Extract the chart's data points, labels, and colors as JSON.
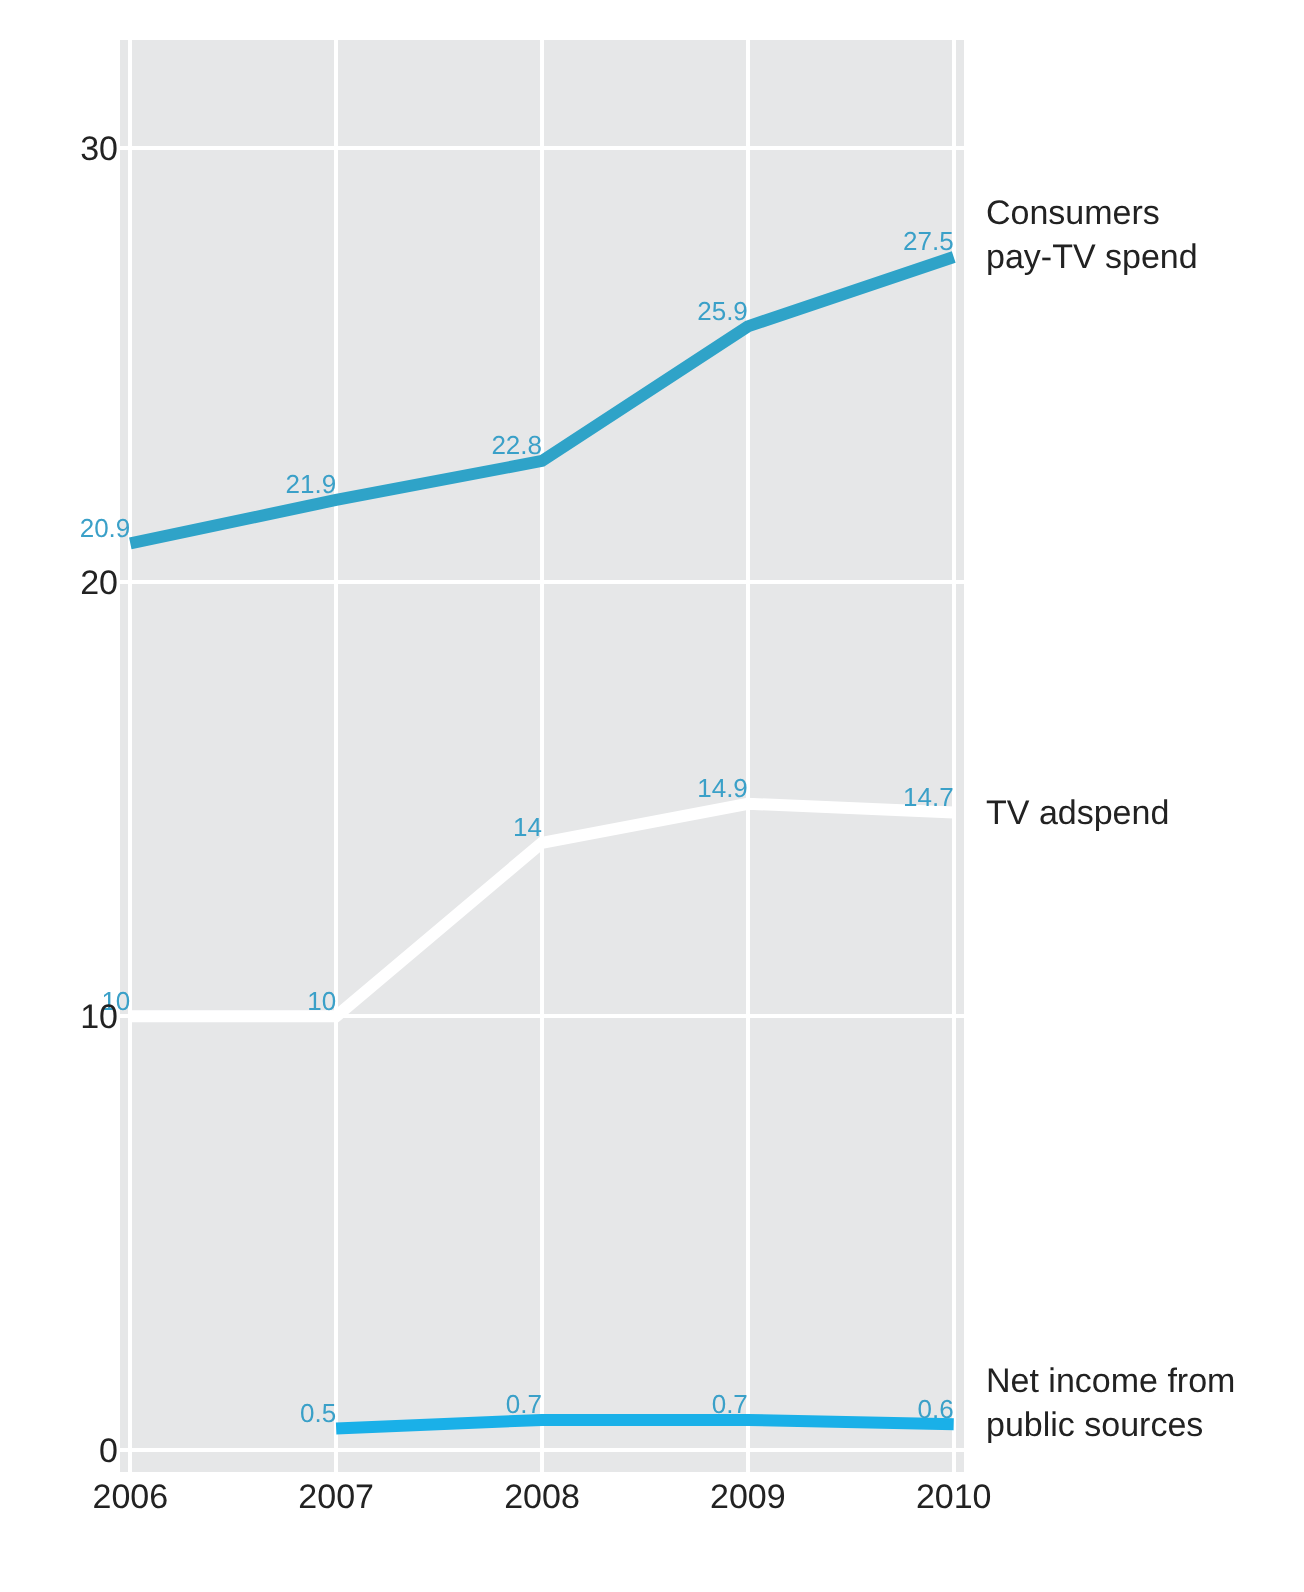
{
  "chart_data": {
    "type": "line",
    "categories": [
      "2006",
      "2007",
      "2008",
      "2009",
      "2010"
    ],
    "series": [
      {
        "name": "Consumers pay-TV spend",
        "color": "#2fa3c8",
        "values": [
          20.9,
          21.9,
          22.8,
          25.9,
          27.5
        ]
      },
      {
        "name": "TV adspend",
        "color": "#ffffff",
        "values": [
          10,
          10,
          14,
          14.9,
          14.7
        ]
      },
      {
        "name": "Net income from public sources",
        "color": "#1ab0e8",
        "values": [
          null,
          0.5,
          0.7,
          0.7,
          0.6
        ]
      }
    ],
    "ylim": [
      -0.5,
      32.5
    ],
    "yticks": [
      0,
      10,
      20,
      30
    ],
    "grid": true,
    "data_labels": true,
    "legend": false,
    "marker": "none",
    "line_style": "solid"
  }
}
